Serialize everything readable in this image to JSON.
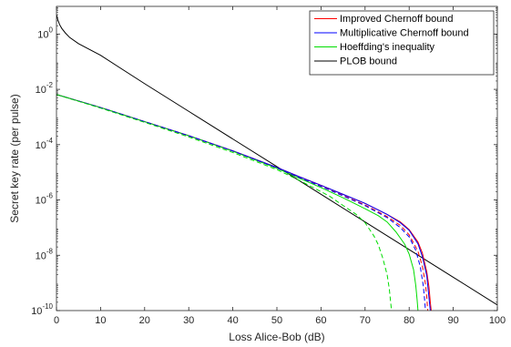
{
  "chart_data": {
    "type": "line",
    "xlabel": "Loss Alice-Bob (dB)",
    "ylabel": "Secret key rate (per pulse)",
    "xlim": [
      0,
      100
    ],
    "ylim": [
      1e-10,
      10
    ],
    "yscale": "log",
    "grid": false,
    "legend_position": "top-right",
    "xticks": [
      0,
      10,
      20,
      30,
      40,
      50,
      60,
      70,
      80,
      90,
      100
    ],
    "xtick_labels": [
      "0",
      "10",
      "20",
      "30",
      "40",
      "50",
      "60",
      "70",
      "80",
      "90",
      "100"
    ],
    "yticks": [
      1,
      0.01,
      0.0001,
      1e-06,
      1e-08,
      1e-10
    ],
    "ytick_labels": [
      {
        "base": "10",
        "exp": "0"
      },
      {
        "base": "10",
        "exp": "-2"
      },
      {
        "base": "10",
        "exp": "-4"
      },
      {
        "base": "10",
        "exp": "-6"
      },
      {
        "base": "10",
        "exp": "-8"
      },
      {
        "base": "10",
        "exp": "-10"
      }
    ],
    "legend": [
      {
        "label": "Improved Chernoff bound",
        "color": "#ff0000"
      },
      {
        "label": "Multiplicative Chernoff bound",
        "color": "#0000ff"
      },
      {
        "label": "Hoeffding's inequality",
        "color": "#00dd00"
      },
      {
        "label": "PLOB bound",
        "color": "#000000"
      }
    ],
    "series": [
      {
        "name": "PLOB bound",
        "color": "#000000",
        "dash": "solid",
        "x": [
          0,
          0.3,
          0.7,
          1.2,
          2,
          3,
          5,
          10,
          20,
          30,
          40,
          50,
          60,
          70,
          80,
          90,
          100
        ],
        "y": [
          5,
          3.3,
          2.2,
          1.6,
          1.1,
          0.75,
          0.45,
          0.17,
          0.016,
          0.0016,
          0.00016,
          1.6e-05,
          1.6e-06,
          1.6e-07,
          1.6e-08,
          1.6e-09,
          1.6e-10
        ]
      },
      {
        "name": "Improved Chernoff bound",
        "color": "#ff0000",
        "dash": "solid",
        "x": [
          0,
          10,
          20,
          30,
          40,
          50,
          55,
          60,
          65,
          70,
          75,
          78,
          80,
          82,
          83,
          84,
          84.5,
          84.8,
          85
        ],
        "y": [
          0.0065,
          0.0022,
          0.00068,
          0.00021,
          6e-05,
          1.5e-05,
          7e-06,
          3.4e-06,
          1.6e-06,
          7.5e-07,
          3e-07,
          1.6e-07,
          8.5e-08,
          3e-08,
          1.2e-08,
          2.5e-09,
          7e-10,
          2e-10,
          1e-10
        ]
      },
      {
        "name": "Multiplicative Chernoff bound",
        "color": "#0000ff",
        "dash": "solid",
        "x": [
          0,
          10,
          20,
          30,
          40,
          50,
          55,
          60,
          65,
          70,
          75,
          78,
          80,
          82,
          83,
          84,
          84.3,
          84.6,
          84.8
        ],
        "y": [
          0.0065,
          0.0022,
          0.00068,
          0.00021,
          6e-05,
          1.5e-05,
          7e-06,
          3.4e-06,
          1.6e-06,
          7.5e-07,
          3e-07,
          1.5e-07,
          8e-08,
          2.6e-08,
          9e-09,
          1.8e-09,
          6e-10,
          2e-10,
          1e-10
        ]
      },
      {
        "name": "Hoeffding's inequality",
        "color": "#00dd00",
        "dash": "solid",
        "x": [
          0,
          10,
          20,
          30,
          40,
          50,
          55,
          60,
          65,
          70,
          73,
          75,
          77,
          79,
          80,
          81,
          81.5,
          81.8,
          82
        ],
        "y": [
          0.0065,
          0.0022,
          0.00068,
          0.00021,
          5.8e-05,
          1.4e-05,
          6.2e-06,
          2.8e-06,
          1.2e-06,
          4.8e-07,
          2.7e-07,
          1.6e-07,
          7e-08,
          2.5e-08,
          1.1e-08,
          3e-09,
          8e-10,
          2.5e-10,
          1e-10
        ]
      },
      {
        "name": "Improved Chernoff bound",
        "color": "#ff0000",
        "dash": "dashed",
        "x": [
          0,
          10,
          20,
          30,
          40,
          50,
          55,
          60,
          65,
          70,
          75,
          78,
          80,
          82,
          83,
          83.7,
          84,
          84.2
        ],
        "y": [
          0.0065,
          0.0022,
          0.00068,
          0.00021,
          5.9e-05,
          1.45e-05,
          6.7e-06,
          3.2e-06,
          1.45e-06,
          6.6e-07,
          2.5e-07,
          1.2e-07,
          5.5e-08,
          1.4e-08,
          4e-09,
          9e-10,
          3e-10,
          1e-10
        ]
      },
      {
        "name": "Multiplicative Chernoff bound",
        "color": "#0000ff",
        "dash": "dashed",
        "x": [
          0,
          10,
          20,
          30,
          40,
          50,
          55,
          60,
          65,
          70,
          75,
          78,
          80,
          81.5,
          82.5,
          83.2,
          83.5,
          83.7
        ],
        "y": [
          0.0065,
          0.0022,
          0.00068,
          0.00021,
          5.9e-05,
          1.45e-05,
          6.6e-06,
          3.1e-06,
          1.4e-06,
          6.2e-07,
          2.3e-07,
          1e-07,
          4.6e-08,
          1.5e-08,
          4e-09,
          8e-10,
          2.5e-10,
          1e-10
        ]
      },
      {
        "name": "Hoeffding's inequality",
        "color": "#00dd00",
        "dash": "dashed",
        "x": [
          0,
          10,
          20,
          30,
          40,
          50,
          55,
          60,
          62,
          65,
          68,
          70,
          72,
          73,
          74,
          75,
          75.5,
          75.8,
          76
        ],
        "y": [
          0.0065,
          0.0021,
          0.00064,
          0.00019,
          5.2e-05,
          1.25e-05,
          5.2e-06,
          2e-06,
          1.35e-06,
          6.3e-07,
          3e-07,
          1.5e-07,
          5e-08,
          2.4e-08,
          8e-09,
          2e-09,
          6e-10,
          2e-10,
          1e-10
        ]
      }
    ]
  }
}
